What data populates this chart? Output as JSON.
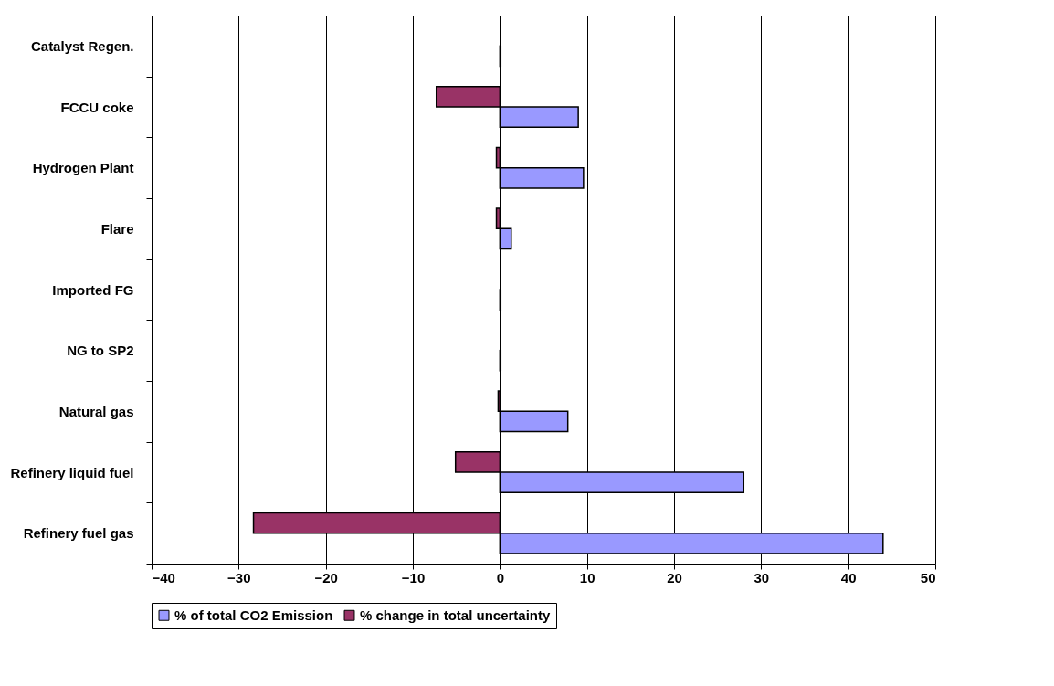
{
  "chart_data": {
    "type": "bar",
    "orientation": "horizontal",
    "categories": [
      "Catalyst Regen.",
      "FCCU coke",
      "Hydrogen Plant",
      "Flare",
      "Imported FG",
      "NG to SP2",
      "Natural gas",
      "Refinery liquid fuel",
      "Refinery fuel gas"
    ],
    "series": [
      {
        "name": "% of total CO2 Emission",
        "color": "#9999ff",
        "values": [
          0.1,
          9.0,
          9.6,
          1.3,
          0.1,
          0.1,
          7.8,
          28.0,
          44.0
        ]
      },
      {
        "name": "% change in total uncertainty",
        "color": "#993366",
        "values": [
          null,
          -7.3,
          -0.4,
          -0.4,
          null,
          null,
          -0.2,
          -5.1,
          -28.3
        ]
      }
    ],
    "xlim": [
      -40,
      50
    ],
    "xticks": [
      -40,
      -30,
      -20,
      -10,
      0,
      10,
      20,
      30,
      40,
      50
    ],
    "grid": "x",
    "legend": "bottom"
  }
}
